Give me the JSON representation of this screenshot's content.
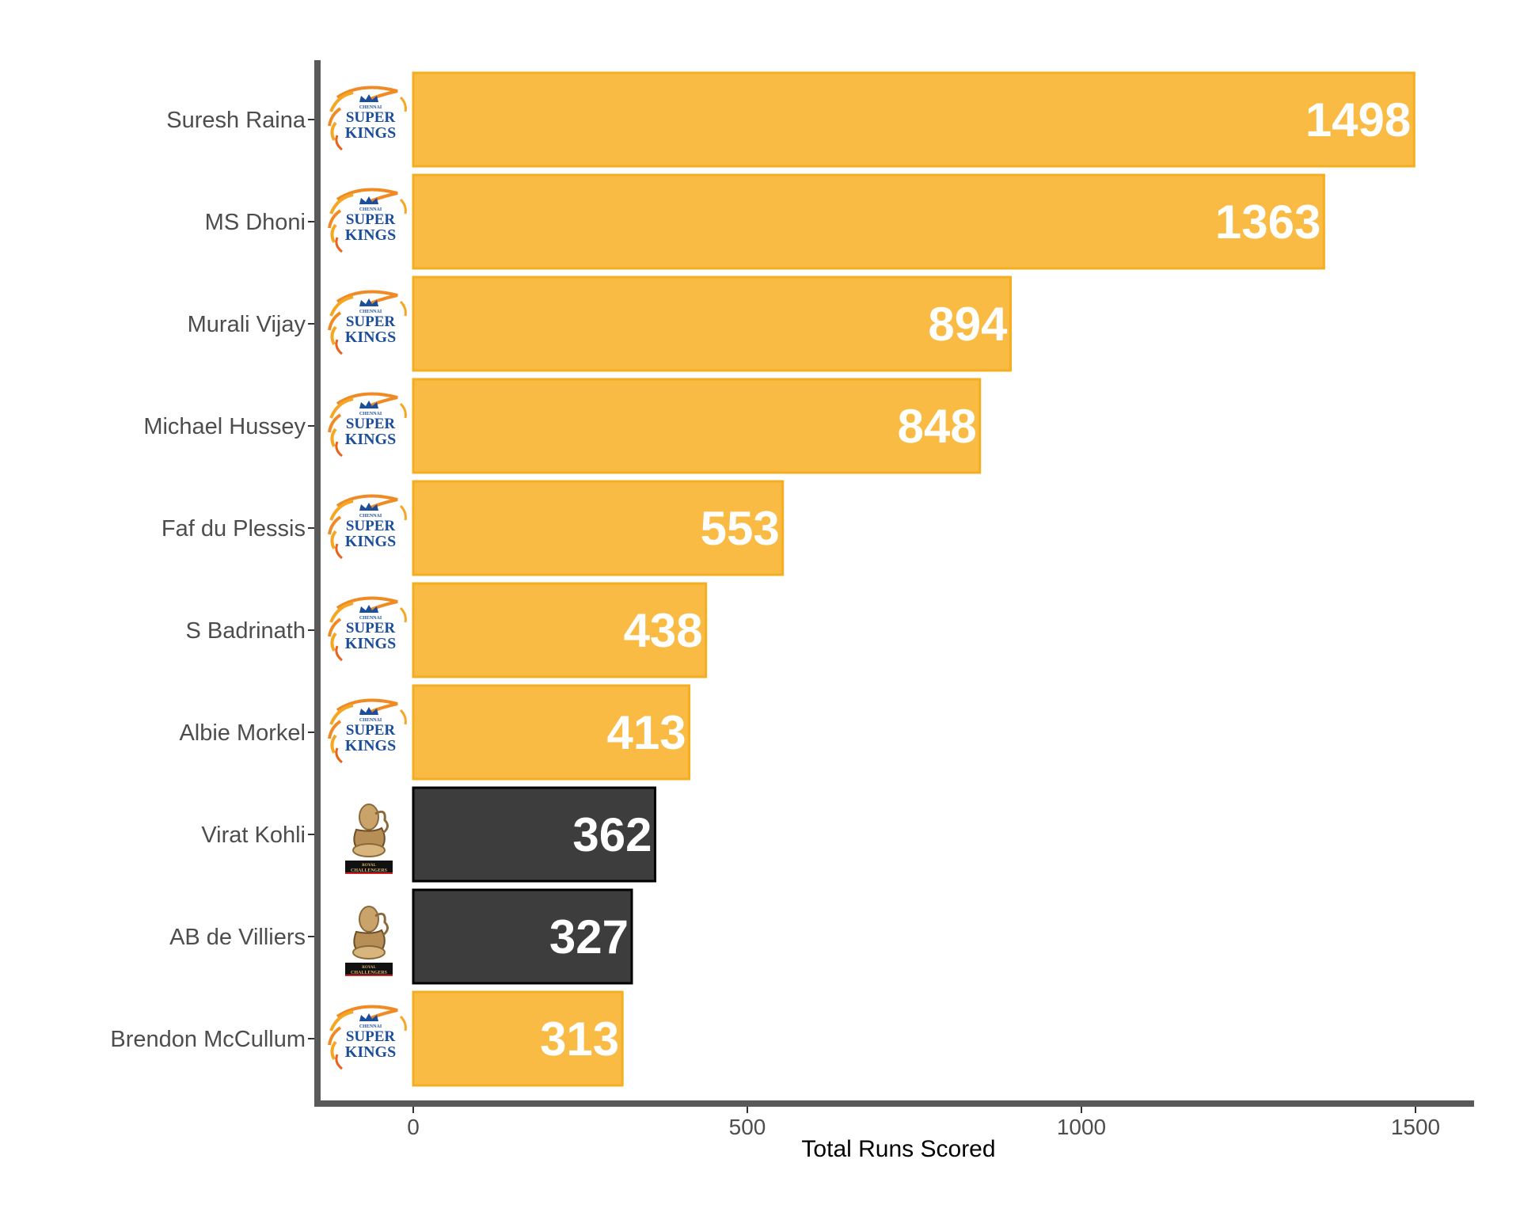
{
  "chart_data": {
    "type": "bar",
    "orientation": "horizontal",
    "xlabel": "Total Runs Scored",
    "ylabel": "",
    "xlim": [
      -145,
      1580
    ],
    "xticks": [
      0,
      500,
      1000,
      1500
    ],
    "grid": false,
    "legend": "none",
    "categories": [
      "Suresh Raina",
      "MS Dhoni",
      "Murali Vijay",
      "Michael Hussey",
      "Faf du Plessis",
      "S Badrinath",
      "Albie Morkel",
      "Virat Kohli",
      "AB de Villiers",
      "Brendon McCullum"
    ],
    "values": [
      1498,
      1363,
      894,
      848,
      553,
      438,
      413,
      362,
      327,
      313
    ],
    "teams": [
      "CSK",
      "CSK",
      "CSK",
      "CSK",
      "CSK",
      "CSK",
      "CSK",
      "RCB",
      "RCB",
      "CSK"
    ],
    "team_colors": {
      "CSK": {
        "fill": "#F9BB43",
        "stroke": "#F4AE22"
      },
      "RCB": {
        "fill": "#3D3D3D",
        "stroke": "#000000"
      }
    },
    "team_logos": {
      "CSK": {
        "icon": "csk-lion-logo",
        "text": [
          "CHENNAI",
          "SUPER",
          "KINGS"
        ]
      },
      "RCB": {
        "icon": "rcb-lion-logo",
        "text": [
          "ROYAL",
          "CHALLENGERS"
        ]
      }
    }
  }
}
